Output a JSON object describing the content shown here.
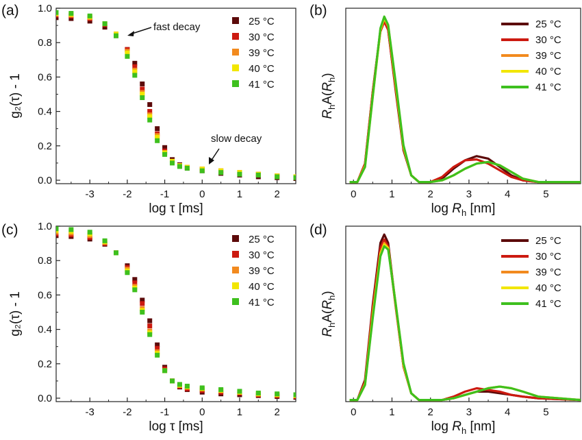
{
  "chart_data": [
    {
      "panel_label": "(a)",
      "type": "scatter",
      "xlabel_main": "log τ",
      "xlabel_unit": "[ms]",
      "ylabel": "g₂(τ) - 1",
      "xlim": [
        -3.9,
        2.5
      ],
      "ylim": [
        -0.02,
        1.0
      ],
      "xticks": [
        -3,
        -2,
        -1,
        0,
        1,
        2
      ],
      "yticks": [
        0.0,
        0.2,
        0.4,
        0.6,
        0.8,
        1.0
      ],
      "annotations": [
        "fast decay",
        "slow decay"
      ],
      "legend_position": "top-right",
      "series": [
        {
          "name": "25 °C",
          "color": "#5c0a0a",
          "x": [
            -3.9,
            -3.5,
            -3.0,
            -2.6,
            -2.3,
            -2.0,
            -1.8,
            -1.6,
            -1.4,
            -1.2,
            -1.0,
            -0.8,
            -0.6,
            -0.4,
            0.0,
            0.5,
            1.0,
            1.5,
            2.0,
            2.5
          ],
          "y": [
            0.945,
            0.94,
            0.925,
            0.89,
            0.84,
            0.76,
            0.68,
            0.56,
            0.44,
            0.3,
            0.19,
            0.12,
            0.09,
            0.07,
            0.055,
            0.04,
            0.03,
            0.02,
            0.015,
            0.01
          ]
        },
        {
          "name": "30 °C",
          "color": "#cc1a10",
          "x": [
            -3.9,
            -3.5,
            -3.0,
            -2.6,
            -2.3,
            -2.0,
            -1.8,
            -1.6,
            -1.4,
            -1.2,
            -1.0,
            -0.8,
            -0.6,
            -0.4,
            0.0,
            0.5,
            1.0,
            1.5,
            2.0,
            2.5
          ],
          "y": [
            0.96,
            0.955,
            0.94,
            0.905,
            0.85,
            0.76,
            0.66,
            0.53,
            0.4,
            0.27,
            0.17,
            0.11,
            0.085,
            0.075,
            0.065,
            0.055,
            0.045,
            0.035,
            0.025,
            0.02
          ]
        },
        {
          "name": "39 °C",
          "color": "#f28a1e",
          "x": [
            -3.9,
            -3.5,
            -3.0,
            -2.6,
            -2.3,
            -2.0,
            -1.8,
            -1.6,
            -1.4,
            -1.2,
            -1.0,
            -0.8,
            -0.6,
            -0.4,
            0.0,
            0.5,
            1.0,
            1.5,
            2.0,
            2.5
          ],
          "y": [
            0.965,
            0.96,
            0.945,
            0.91,
            0.85,
            0.75,
            0.64,
            0.51,
            0.38,
            0.26,
            0.16,
            0.11,
            0.085,
            0.075,
            0.065,
            0.055,
            0.045,
            0.035,
            0.025,
            0.02
          ]
        },
        {
          "name": "40 °C",
          "color": "#f2e600",
          "x": [
            -3.9,
            -3.5,
            -3.0,
            -2.6,
            -2.3,
            -2.0,
            -1.8,
            -1.6,
            -1.4,
            -1.2,
            -1.0,
            -0.8,
            -0.6,
            -0.4,
            0.0,
            0.5,
            1.0,
            1.5,
            2.0,
            2.5
          ],
          "y": [
            0.97,
            0.965,
            0.95,
            0.91,
            0.85,
            0.74,
            0.63,
            0.5,
            0.37,
            0.25,
            0.16,
            0.11,
            0.085,
            0.075,
            0.065,
            0.055,
            0.045,
            0.035,
            0.025,
            0.02
          ]
        },
        {
          "name": "41 °C",
          "color": "#3ec01e",
          "x": [
            -3.9,
            -3.5,
            -3.0,
            -2.6,
            -2.3,
            -2.0,
            -1.8,
            -1.6,
            -1.4,
            -1.2,
            -1.0,
            -0.8,
            -0.6,
            -0.4,
            0.0,
            0.5,
            1.0,
            1.5,
            2.0,
            2.5
          ],
          "y": [
            0.975,
            0.97,
            0.955,
            0.91,
            0.84,
            0.72,
            0.61,
            0.48,
            0.35,
            0.23,
            0.15,
            0.1,
            0.08,
            0.07,
            0.055,
            0.045,
            0.035,
            0.03,
            0.02,
            0.015
          ]
        }
      ]
    },
    {
      "panel_label": "(b)",
      "type": "line",
      "xlabel_main": "log ",
      "xlabel_italic": "R",
      "xlabel_sub": "h",
      "xlabel_unit": " [nm]",
      "ylabel_italic": "R",
      "ylabel_sub": "h",
      "ylabel_mid": "A(",
      "ylabel_italic2": "R",
      "ylabel_sub2": "h",
      "ylabel_end": ")",
      "xlim": [
        -0.2,
        5.9
      ],
      "ylim": [
        0,
        1.05
      ],
      "xticks": [
        0,
        1,
        2,
        3,
        4,
        5
      ],
      "legend_position": "top-right",
      "series": [
        {
          "name": "25 °C",
          "color": "#5c0a0a",
          "x": [
            -0.1,
            0.1,
            0.3,
            0.5,
            0.7,
            0.8,
            0.9,
            1.1,
            1.3,
            1.5,
            1.7,
            2.0,
            2.3,
            2.6,
            2.9,
            3.2,
            3.5,
            3.8,
            4.1,
            4.4,
            4.8,
            5.9
          ],
          "y": [
            0.01,
            0.01,
            0.12,
            0.55,
            0.92,
            0.98,
            0.92,
            0.55,
            0.2,
            0.05,
            0.01,
            0.01,
            0.03,
            0.09,
            0.14,
            0.165,
            0.15,
            0.1,
            0.05,
            0.02,
            0.01,
            0.01
          ]
        },
        {
          "name": "30 °C",
          "color": "#cc1a10",
          "x": [
            -0.1,
            0.1,
            0.3,
            0.5,
            0.7,
            0.8,
            0.9,
            1.1,
            1.3,
            1.5,
            1.7,
            2.0,
            2.3,
            2.6,
            2.9,
            3.2,
            3.5,
            3.8,
            4.1,
            4.4,
            4.8,
            5.9
          ],
          "y": [
            0.01,
            0.01,
            0.12,
            0.55,
            0.91,
            0.97,
            0.92,
            0.56,
            0.21,
            0.05,
            0.01,
            0.01,
            0.04,
            0.1,
            0.14,
            0.145,
            0.12,
            0.08,
            0.04,
            0.02,
            0.01,
            0.01
          ]
        },
        {
          "name": "39 °C",
          "color": "#f28a1e",
          "x": [
            -0.1,
            0.1,
            0.3,
            0.5,
            0.7,
            0.8,
            0.9,
            1.1,
            1.3,
            1.5,
            1.7,
            2.0,
            2.3,
            2.6,
            2.9,
            3.2,
            3.5,
            3.8,
            4.1,
            4.4,
            4.8,
            5.9
          ],
          "y": [
            0.01,
            0.01,
            0.11,
            0.53,
            0.92,
            0.99,
            0.94,
            0.58,
            0.22,
            0.05,
            0.01,
            0.01,
            0.02,
            0.05,
            0.09,
            0.12,
            0.13,
            0.11,
            0.07,
            0.03,
            0.01,
            0.01
          ]
        },
        {
          "name": "40 °C",
          "color": "#f2e600",
          "x": [
            -0.1,
            0.1,
            0.3,
            0.5,
            0.7,
            0.8,
            0.9,
            1.1,
            1.3,
            1.5,
            1.7,
            2.0,
            2.3,
            2.6,
            2.9,
            3.2,
            3.5,
            3.8,
            4.1,
            4.4,
            4.8,
            5.9
          ],
          "y": [
            0.01,
            0.01,
            0.1,
            0.52,
            0.92,
            0.99,
            0.95,
            0.59,
            0.22,
            0.05,
            0.01,
            0.01,
            0.02,
            0.05,
            0.09,
            0.12,
            0.13,
            0.11,
            0.07,
            0.03,
            0.01,
            0.01
          ]
        },
        {
          "name": "41 °C",
          "color": "#3ec01e",
          "x": [
            -0.1,
            0.1,
            0.3,
            0.5,
            0.7,
            0.8,
            0.9,
            1.1,
            1.3,
            1.5,
            1.7,
            2.0,
            2.3,
            2.6,
            2.9,
            3.2,
            3.5,
            3.8,
            4.1,
            4.4,
            4.8,
            5.9
          ],
          "y": [
            0.01,
            0.01,
            0.1,
            0.52,
            0.93,
            1.0,
            0.95,
            0.6,
            0.23,
            0.05,
            0.01,
            0.01,
            0.02,
            0.05,
            0.09,
            0.12,
            0.13,
            0.11,
            0.07,
            0.03,
            0.01,
            0.01
          ]
        }
      ]
    },
    {
      "panel_label": "(c)",
      "type": "scatter",
      "xlabel_main": "log τ",
      "xlabel_unit": "[ms]",
      "ylabel": "g₂(τ) - 1",
      "xlim": [
        -3.9,
        2.5
      ],
      "ylim": [
        -0.02,
        1.0
      ],
      "xticks": [
        -3,
        -2,
        -1,
        0,
        1,
        2
      ],
      "yticks": [
        0.0,
        0.2,
        0.4,
        0.6,
        0.8,
        1.0
      ],
      "legend_position": "top-right",
      "series": [
        {
          "name": "25 °C",
          "color": "#5c0a0a",
          "x": [
            -3.9,
            -3.5,
            -3.0,
            -2.6,
            -2.3,
            -2.0,
            -1.8,
            -1.6,
            -1.4,
            -1.2,
            -1.0,
            -0.8,
            -0.6,
            -0.4,
            0.0,
            0.5,
            1.0,
            1.5,
            2.0,
            2.5
          ],
          "y": [
            0.945,
            0.94,
            0.925,
            0.895,
            0.845,
            0.77,
            0.69,
            0.57,
            0.45,
            0.31,
            0.18,
            0.1,
            0.065,
            0.05,
            0.035,
            0.025,
            0.02,
            0.015,
            0.01,
            0.005
          ]
        },
        {
          "name": "30 °C",
          "color": "#cc1a10",
          "x": [
            -3.9,
            -3.5,
            -3.0,
            -2.6,
            -2.3,
            -2.0,
            -1.8,
            -1.6,
            -1.4,
            -1.2,
            -1.0,
            -0.8,
            -0.6,
            -0.4,
            0.0,
            0.5,
            1.0,
            1.5,
            2.0,
            2.5
          ],
          "y": [
            0.955,
            0.95,
            0.935,
            0.9,
            0.845,
            0.76,
            0.67,
            0.55,
            0.42,
            0.29,
            0.17,
            0.1,
            0.07,
            0.055,
            0.045,
            0.035,
            0.03,
            0.02,
            0.015,
            0.01
          ]
        },
        {
          "name": "39 °C",
          "color": "#f28a1e",
          "x": [
            -3.9,
            -3.5,
            -3.0,
            -2.6,
            -2.3,
            -2.0,
            -1.8,
            -1.6,
            -1.4,
            -1.2,
            -1.0,
            -0.8,
            -0.6,
            -0.4,
            0.0,
            0.5,
            1.0,
            1.5,
            2.0,
            2.5
          ],
          "y": [
            0.965,
            0.96,
            0.945,
            0.905,
            0.845,
            0.75,
            0.65,
            0.52,
            0.39,
            0.27,
            0.16,
            0.1,
            0.075,
            0.065,
            0.055,
            0.045,
            0.035,
            0.025,
            0.02,
            0.015
          ]
        },
        {
          "name": "40 °C",
          "color": "#f2e600",
          "x": [
            -3.9,
            -3.5,
            -3.0,
            -2.6,
            -2.3,
            -2.0,
            -1.8,
            -1.6,
            -1.4,
            -1.2,
            -1.0,
            -0.8,
            -0.6,
            -0.4,
            0.0,
            0.5,
            1.0,
            1.5,
            2.0,
            2.5
          ],
          "y": [
            0.975,
            0.97,
            0.955,
            0.91,
            0.845,
            0.74,
            0.64,
            0.51,
            0.38,
            0.26,
            0.16,
            0.1,
            0.075,
            0.065,
            0.055,
            0.045,
            0.035,
            0.025,
            0.02,
            0.015
          ]
        },
        {
          "name": "41 °C",
          "color": "#3ec01e",
          "x": [
            -3.9,
            -3.5,
            -3.0,
            -2.6,
            -2.3,
            -2.0,
            -1.8,
            -1.6,
            -1.4,
            -1.2,
            -1.0,
            -0.8,
            -0.6,
            -0.4,
            0.0,
            0.5,
            1.0,
            1.5,
            2.0,
            2.5
          ],
          "y": [
            0.985,
            0.98,
            0.965,
            0.915,
            0.845,
            0.73,
            0.63,
            0.5,
            0.37,
            0.25,
            0.16,
            0.1,
            0.08,
            0.07,
            0.06,
            0.05,
            0.04,
            0.03,
            0.025,
            0.02
          ]
        }
      ]
    },
    {
      "panel_label": "(d)",
      "type": "line",
      "xlabel_main": "log ",
      "xlabel_italic": "R",
      "xlabel_sub": "h",
      "xlabel_unit": " [nm]",
      "ylabel_italic": "R",
      "ylabel_sub": "h",
      "ylabel_mid": "A(",
      "ylabel_italic2": "R",
      "ylabel_sub2": "h",
      "ylabel_end": ")",
      "xlim": [
        -0.2,
        5.9
      ],
      "ylim": [
        0,
        1.05
      ],
      "xticks": [
        0,
        1,
        2,
        3,
        4,
        5
      ],
      "legend_position": "top-right",
      "series": [
        {
          "name": "25 °C",
          "color": "#5c0a0a",
          "x": [
            -0.1,
            0.1,
            0.3,
            0.5,
            0.7,
            0.8,
            0.9,
            1.1,
            1.3,
            1.5,
            1.7,
            2.0,
            2.3,
            2.6,
            2.9,
            3.2,
            3.5,
            3.8,
            4.1,
            4.4,
            4.8,
            5.9
          ],
          "y": [
            0.01,
            0.01,
            0.13,
            0.58,
            0.95,
            1.0,
            0.95,
            0.57,
            0.21,
            0.05,
            0.01,
            0.01,
            0.01,
            0.02,
            0.04,
            0.06,
            0.06,
            0.05,
            0.04,
            0.03,
            0.02,
            0.01
          ]
        },
        {
          "name": "30 °C",
          "color": "#cc1a10",
          "x": [
            -0.1,
            0.1,
            0.3,
            0.5,
            0.7,
            0.8,
            0.9,
            1.1,
            1.3,
            1.5,
            1.7,
            2.0,
            2.3,
            2.6,
            2.9,
            3.2,
            3.5,
            3.8,
            4.1,
            4.4,
            4.8,
            5.9
          ],
          "y": [
            0.01,
            0.01,
            0.12,
            0.56,
            0.92,
            0.97,
            0.93,
            0.56,
            0.21,
            0.05,
            0.01,
            0.01,
            0.01,
            0.03,
            0.06,
            0.08,
            0.07,
            0.06,
            0.04,
            0.03,
            0.02,
            0.01
          ]
        },
        {
          "name": "39 °C",
          "color": "#f28a1e",
          "x": [
            -0.1,
            0.1,
            0.3,
            0.5,
            0.7,
            0.8,
            0.9,
            1.1,
            1.3,
            1.5,
            1.7,
            2.0,
            2.3,
            2.6,
            2.9,
            3.2,
            3.5,
            3.8,
            4.1,
            4.4,
            4.8,
            5.9
          ],
          "y": [
            0.01,
            0.01,
            0.11,
            0.53,
            0.89,
            0.95,
            0.92,
            0.57,
            0.22,
            0.05,
            0.01,
            0.01,
            0.01,
            0.02,
            0.04,
            0.06,
            0.08,
            0.09,
            0.08,
            0.06,
            0.03,
            0.01
          ]
        },
        {
          "name": "40 °C",
          "color": "#f2e600",
          "x": [
            -0.1,
            0.1,
            0.3,
            0.5,
            0.7,
            0.8,
            0.9,
            1.1,
            1.3,
            1.5,
            1.7,
            2.0,
            2.3,
            2.6,
            2.9,
            3.2,
            3.5,
            3.8,
            4.1,
            4.4,
            4.8,
            5.9
          ],
          "y": [
            0.01,
            0.01,
            0.1,
            0.51,
            0.88,
            0.94,
            0.92,
            0.58,
            0.22,
            0.05,
            0.01,
            0.01,
            0.01,
            0.02,
            0.04,
            0.06,
            0.08,
            0.09,
            0.08,
            0.06,
            0.03,
            0.01
          ]
        },
        {
          "name": "41 °C",
          "color": "#3ec01e",
          "x": [
            -0.1,
            0.1,
            0.3,
            0.5,
            0.7,
            0.8,
            0.9,
            1.1,
            1.3,
            1.5,
            1.7,
            2.0,
            2.3,
            2.6,
            2.9,
            3.2,
            3.5,
            3.8,
            4.1,
            4.4,
            4.8,
            5.9
          ],
          "y": [
            0.01,
            0.01,
            0.1,
            0.5,
            0.87,
            0.93,
            0.91,
            0.58,
            0.23,
            0.05,
            0.01,
            0.01,
            0.01,
            0.02,
            0.04,
            0.06,
            0.08,
            0.09,
            0.08,
            0.06,
            0.03,
            0.01
          ]
        }
      ]
    }
  ]
}
